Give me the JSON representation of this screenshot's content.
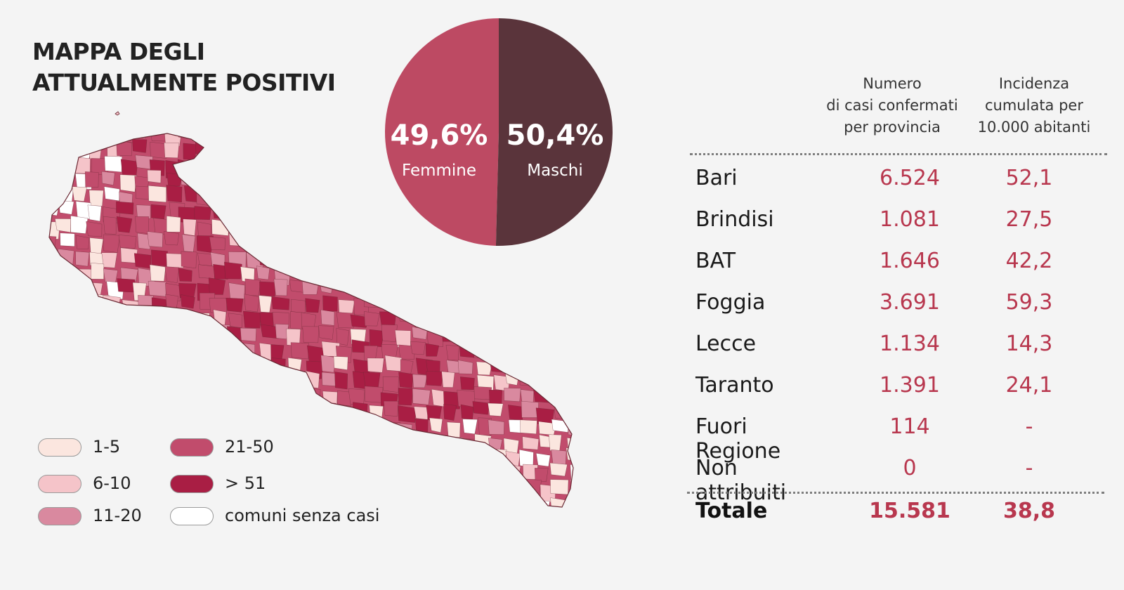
{
  "title": {
    "line1": "MAPPA DEGLI",
    "line2": "ATTUALMENTE POSITIVI"
  },
  "colors": {
    "femmine": "#bd4a63",
    "maschi": "#5a343b",
    "bin_1_5": "#fbe6df",
    "bin_6_10": "#f5c4c9",
    "bin_11_20": "#d9899f",
    "bin_21_50": "#c14c6c",
    "bin_51_plus": "#a91e44",
    "bin_none": "#ffffff",
    "value_text": "#b8374e"
  },
  "legend": [
    {
      "label": "1-5",
      "color": "#fbe6df"
    },
    {
      "label": "6-10",
      "color": "#f5c4c9"
    },
    {
      "label": "11-20",
      "color": "#d9899f"
    },
    {
      "label": "21-50",
      "color": "#c14c6c"
    },
    {
      "label": "> 51",
      "color": "#a91e44"
    },
    {
      "label": "comuni senza casi",
      "color": "#ffffff"
    }
  ],
  "chart_data": [
    {
      "type": "pie",
      "slices": [
        {
          "label": "Femmine",
          "value": 49.6,
          "value_label": "49,6%",
          "color": "#bd4a63"
        },
        {
          "label": "Maschi",
          "value": 50.4,
          "value_label": "50,4%",
          "color": "#5a343b"
        }
      ]
    },
    {
      "type": "table",
      "columns": [
        "",
        "Numero di casi confermati per provincia",
        "Incidenza cumulata per 10.000 abitanti"
      ],
      "header": {
        "col1": [
          "Numero",
          "di casi confermati",
          "per provincia"
        ],
        "col2": [
          "Incidenza",
          "cumulata per",
          "10.000 abitanti"
        ]
      },
      "rows": [
        {
          "name": "Bari",
          "cases": "6.524",
          "incidence": "52,1"
        },
        {
          "name": "Brindisi",
          "cases": "1.081",
          "incidence": "27,5"
        },
        {
          "name": "BAT",
          "cases": "1.646",
          "incidence": "42,2"
        },
        {
          "name": "Foggia",
          "cases": "3.691",
          "incidence": "59,3"
        },
        {
          "name": "Lecce",
          "cases": "1.134",
          "incidence": "14,3"
        },
        {
          "name": "Taranto",
          "cases": "1.391",
          "incidence": "24,1"
        },
        {
          "name": "Fuori Regione",
          "cases": "114",
          "incidence": "-"
        },
        {
          "name": "Non attribuiti",
          "cases": "0",
          "incidence": "-"
        }
      ],
      "total": {
        "name": "Totale",
        "cases": "15.581",
        "incidence": "38,8"
      }
    }
  ]
}
